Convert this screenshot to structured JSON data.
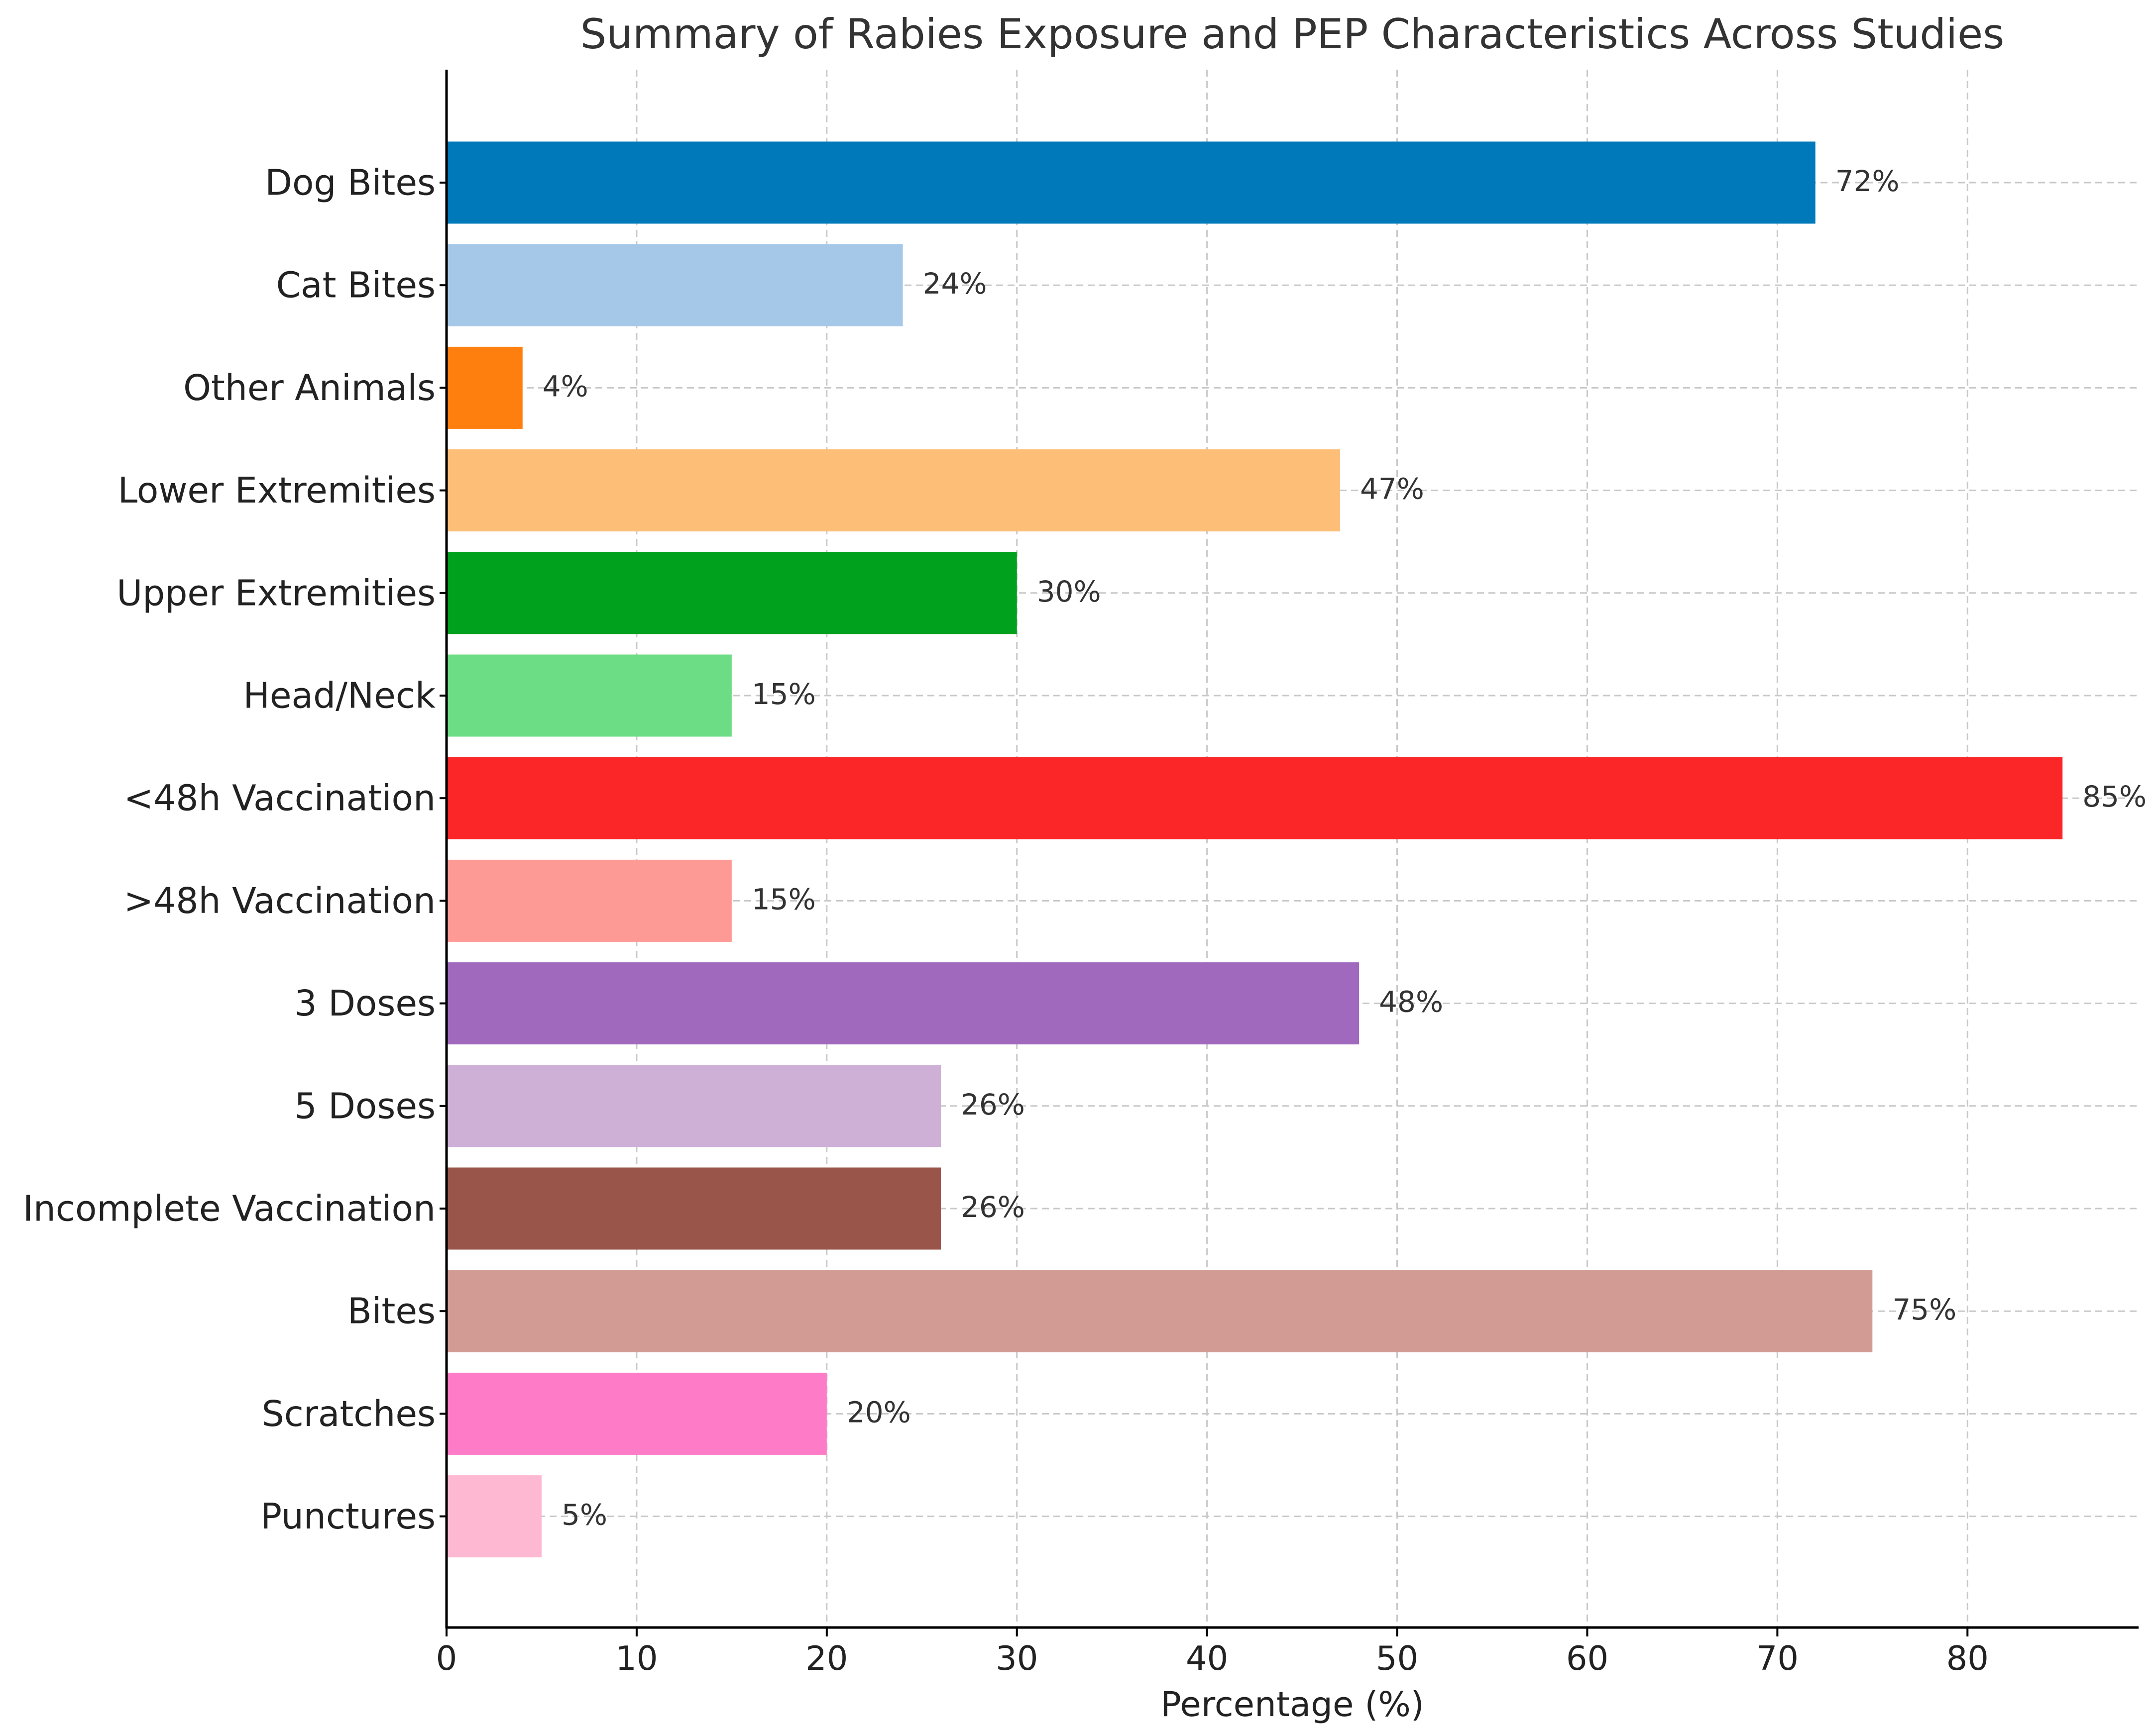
{
  "chart_data": {
    "type": "bar",
    "orientation": "horizontal",
    "title": "Summary of Rabies Exposure and PEP Characteristics Across Studies",
    "xlabel": "Percentage (%)",
    "ylabel": "",
    "xlim": [
      0,
      89
    ],
    "xticks": [
      0,
      10,
      20,
      30,
      40,
      50,
      60,
      70,
      80
    ],
    "grid": true,
    "categories": [
      "Dog Bites",
      "Cat Bites",
      "Other Animals",
      "Lower Extremities",
      "Upper Extremities",
      "Head/Neck",
      "<48h Vaccination",
      ">48h Vaccination",
      "3 Doses",
      "5 Doses",
      "Incomplete Vaccination",
      "Bites",
      "Scratches",
      "Punctures"
    ],
    "values": [
      72,
      24,
      4,
      47,
      30,
      15,
      85,
      15,
      48,
      26,
      26,
      75,
      20,
      5
    ],
    "value_labels": [
      "72%",
      "24%",
      "4%",
      "47%",
      "30%",
      "15%",
      "85%",
      "15%",
      "48%",
      "26%",
      "26%",
      "75%",
      "20%",
      "5%"
    ],
    "colors": [
      "#0079BA",
      "#A6C8E8",
      "#FF7F0E",
      "#FDBE78",
      "#00A11C",
      "#6CDD85",
      "#FA2628",
      "#FE9A96",
      "#A169BE",
      "#CEAFD6",
      "#995549",
      "#D29C94",
      "#FE7BC8",
      "#FEB8D2"
    ]
  }
}
